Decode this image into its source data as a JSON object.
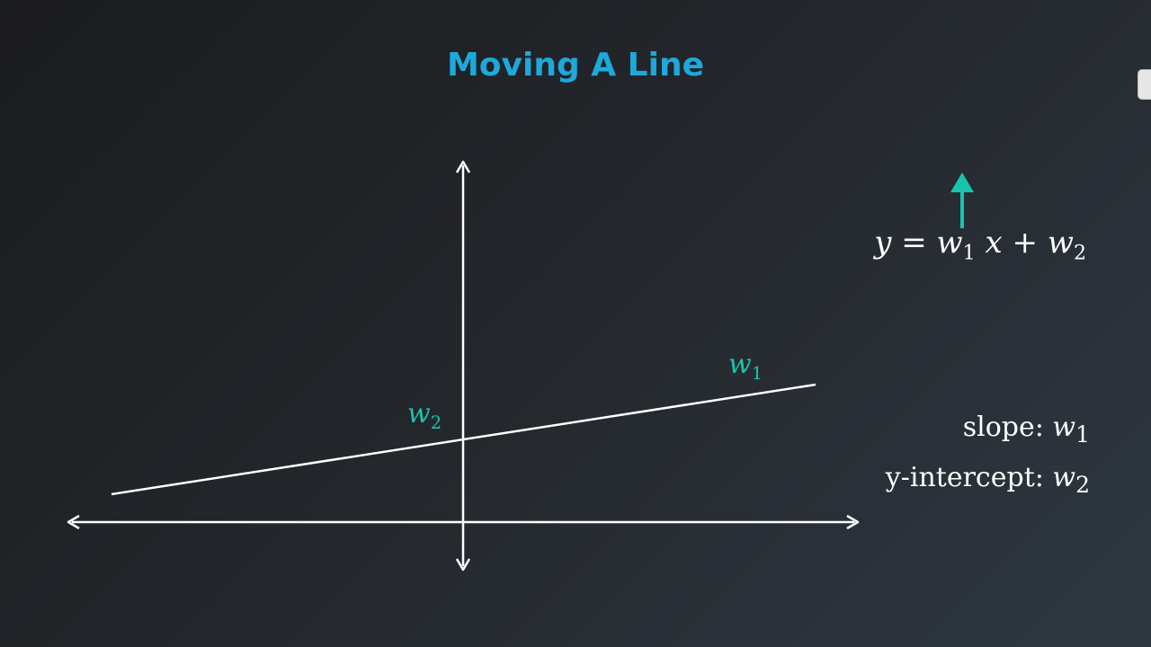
{
  "title": "Moving A Line",
  "equation": {
    "lhs": "y",
    "eq": "=",
    "w1": "w",
    "w1_sub": "1",
    "x": "x",
    "plus": "+",
    "w2": "w",
    "w2_sub": "2"
  },
  "line_labels": {
    "slope_symbol": "w",
    "slope_sub": "1",
    "intercept_symbol": "w",
    "intercept_sub": "2"
  },
  "legend": {
    "slope_label": "slope:",
    "slope_symbol": "w",
    "slope_sub": "1",
    "intercept_label": "y-intercept:",
    "intercept_symbol": "w",
    "intercept_sub": "2"
  },
  "colors": {
    "title": "#1ea8dc",
    "accent": "#19c4ac",
    "axes": "#ffffff",
    "background_start": "#1b1c1e",
    "background_end": "#2e3740"
  },
  "icons": {
    "intercept_increase_arrow": "up-arrow-icon"
  }
}
